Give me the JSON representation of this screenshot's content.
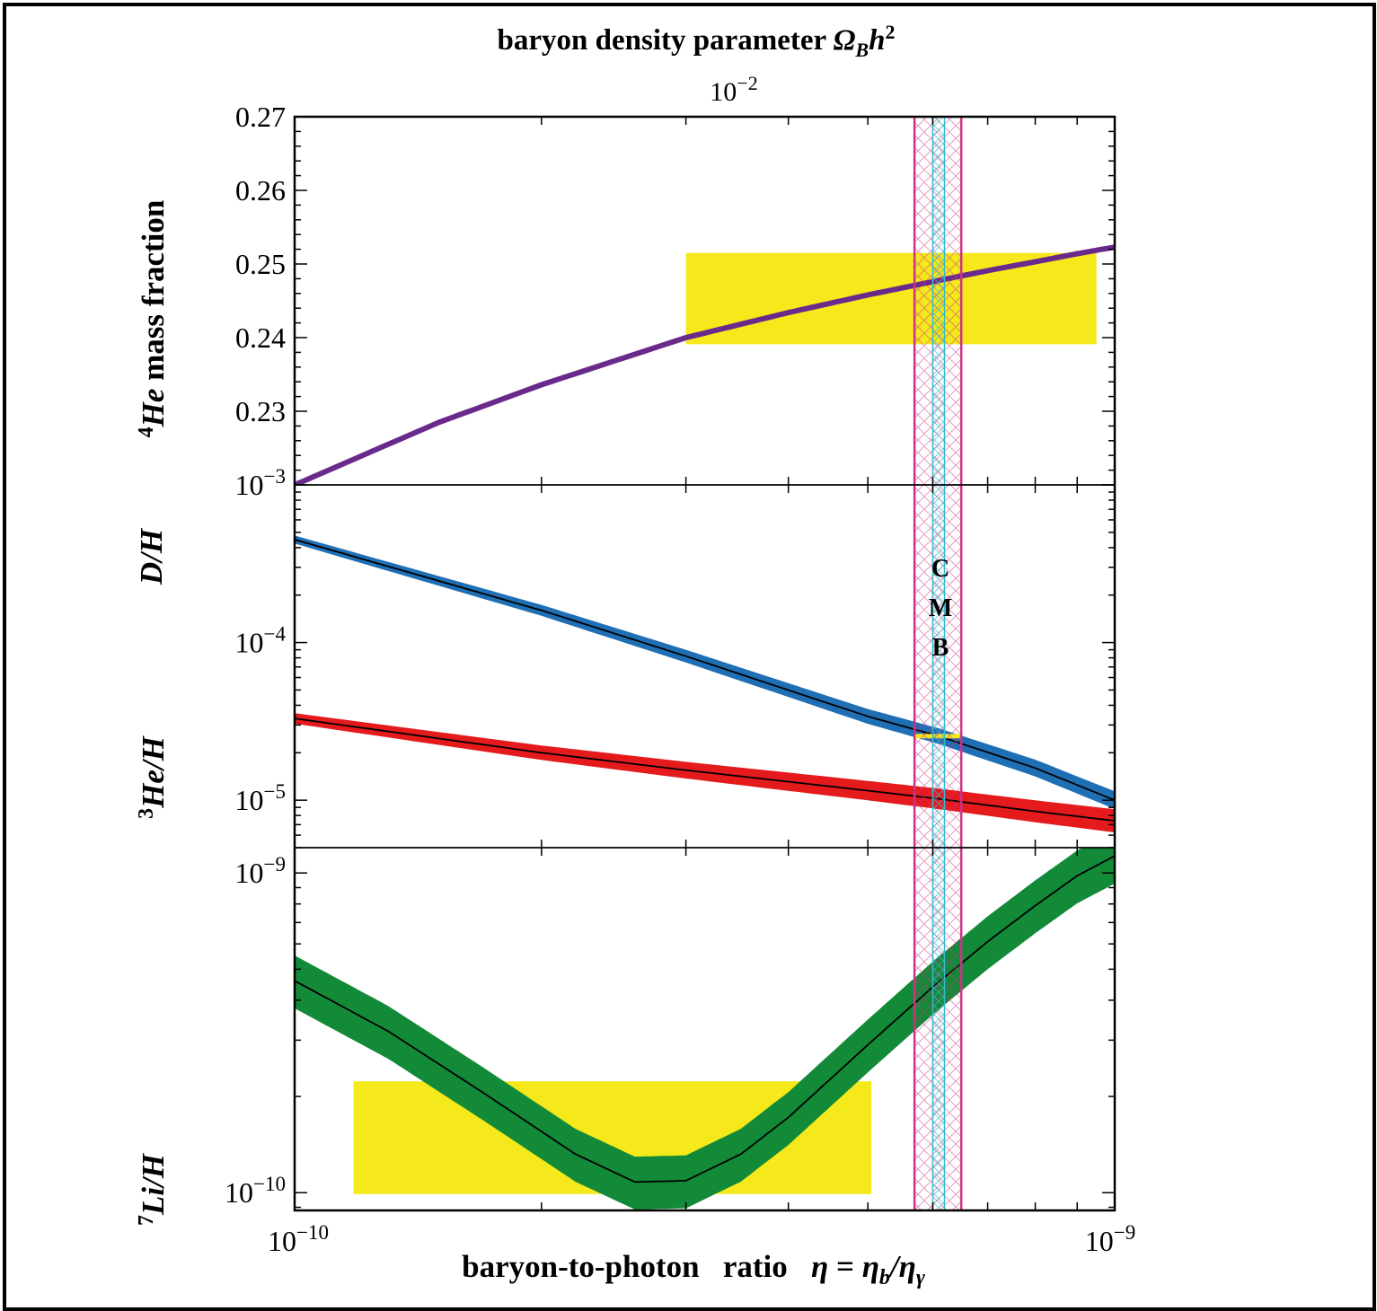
{
  "chart_data": {
    "type": "line",
    "title": "baryon density parameter Ω_B h²",
    "title_main": "baryon density parameter ",
    "title_symbol": "Ω",
    "title_symbol_sub": "B",
    "title_symbol_h": "h",
    "title_symbol_sup": "2",
    "top_axis_tick_base": "10",
    "top_axis_tick_exp": "−2",
    "top_axis_tick_value": 0.01,
    "xlabel": "baryon-to-photon   ratio   η = η_b/η_γ",
    "xlabel_text": "baryon-to-photon   ratio   ",
    "xlabel_eta": "η",
    "xlabel_eq": " = ",
    "xlabel_eta_b": "η",
    "xlabel_eta_b_sub": "b",
    "xlabel_slash": "/",
    "xlabel_eta_g": "η",
    "xlabel_eta_g_sub": "γ",
    "xscale": "log",
    "xlim": [
      1e-10,
      1e-09
    ],
    "x_tick_labels": [
      {
        "value": 1e-10,
        "base": "10",
        "exp": "−10"
      },
      {
        "value": 1e-09,
        "base": "10",
        "exp": "−9"
      }
    ],
    "cmb_label": [
      "C",
      "M",
      "B"
    ],
    "cmb_band": {
      "outer": [
        5.7e-10,
        6.5e-10
      ],
      "inner": [
        6e-10,
        6.2e-10
      ],
      "outer_color": "#cc3388",
      "inner_color": "#33bbcc"
    },
    "panels": [
      {
        "id": "he4",
        "ylabel_sup": "4",
        "ylabel_main": "He",
        "ylabel_rest": " mass fraction",
        "yscale": "linear",
        "ylim": [
          0.22,
          0.27
        ],
        "y_tick_labels": [
          "0.23",
          "0.24",
          "0.25",
          "0.26",
          "0.27"
        ],
        "y_tick_values": [
          0.23,
          0.24,
          0.25,
          0.26,
          0.27
        ],
        "series": [
          {
            "name": "4He mass fraction",
            "color": "#6a2a8c",
            "x": [
              1e-10,
              1.5e-10,
              2e-10,
              3e-10,
              4e-10,
              5e-10,
              6e-10,
              7e-10,
              8e-10,
              9e-10,
              1e-09
            ],
            "y": [
              0.22,
              0.2285,
              0.2336,
              0.24,
              0.2434,
              0.2458,
              0.2476,
              0.2491,
              0.2503,
              0.2514,
              0.2523
            ]
          }
        ],
        "obs_box": {
          "x": [
            3e-10,
            9.5e-10
          ],
          "y": [
            0.2391,
            0.2515
          ],
          "color": "#f5e91c"
        }
      },
      {
        "id": "dh_he3",
        "ylabel_top_main": "D",
        "ylabel_top_rest": "/H",
        "ylabel_bottom_sup": "3",
        "ylabel_bottom_main": "He",
        "ylabel_bottom_rest": "/H",
        "yscale": "log",
        "ylim": [
          5e-06,
          0.001
        ],
        "y_tick_labels": [
          {
            "value": 0.001,
            "base": "10",
            "exp": "−3"
          },
          {
            "value": 0.0001,
            "base": "10",
            "exp": "−4"
          },
          {
            "value": 1e-05,
            "base": "10",
            "exp": "−5"
          }
        ],
        "series": [
          {
            "name": "D/H",
            "color": "#1f6fb5",
            "x": [
              1e-10,
              2e-10,
              3e-10,
              5e-10,
              6.1e-10,
              8e-10,
              1e-09
            ],
            "y": [
              0.00045,
              0.00016,
              8.2e-05,
              3.4e-05,
              2.55e-05,
              1.6e-05,
              1e-05
            ],
            "band_width": 0.06
          },
          {
            "name": "3He/H",
            "color": "#e41a1c",
            "x": [
              1e-10,
              2e-10,
              3e-10,
              5e-10,
              6.1e-10,
              8e-10,
              1e-09
            ],
            "y": [
              3.3e-05,
              2e-05,
              1.55e-05,
              1.15e-05,
              1.02e-05,
              8.5e-06,
              7.4e-06
            ],
            "band_width": 0.08
          }
        ],
        "obs_box": {
          "x": [
            5.7e-10,
            6.5e-10
          ],
          "y": [
            2.5e-05,
            2.6e-05
          ],
          "color": "#f5e91c"
        }
      },
      {
        "id": "li7",
        "ylabel_sup": "7",
        "ylabel_main": "Li",
        "ylabel_rest": "/H",
        "yscale": "log",
        "ylim": [
          8.8e-11,
          1.2e-09
        ],
        "y_tick_labels": [
          {
            "value": 1e-09,
            "base": "10",
            "exp": "−9"
          },
          {
            "value": 1e-10,
            "base": "10",
            "exp": "−10"
          }
        ],
        "series": [
          {
            "name": "7Li/H",
            "color": "#128a37",
            "x": [
              1e-10,
              1.3e-10,
              1.7e-10,
              2.2e-10,
              2.6e-10,
              3e-10,
              3.5e-10,
              4e-10,
              5e-10,
              6e-10,
              7e-10,
              8e-10,
              9e-10,
              1e-09
            ],
            "y": [
              4.6e-10,
              3.2e-10,
              2.05e-10,
              1.32e-10,
              1.08e-10,
              1.09e-10,
              1.32e-10,
              1.72e-10,
              2.9e-10,
              4.4e-10,
              6.1e-10,
              7.9e-10,
              9.8e-10,
              1.13e-09
            ],
            "band_lo_factor": 0.82,
            "band_hi_factor": 1.2
          }
        ],
        "obs_box": {
          "x": [
            1.18e-10,
            5.05e-10
          ],
          "y": [
            9.9e-11,
            2.23e-10
          ],
          "color": "#f5e91c"
        }
      }
    ]
  }
}
